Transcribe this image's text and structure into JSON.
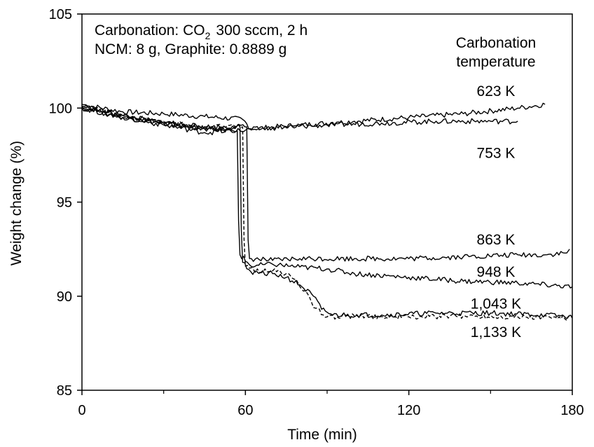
{
  "chart_data": {
    "type": "line",
    "xlabel": "Time (min)",
    "ylabel": "Weight change (%)",
    "xlim": [
      0,
      180
    ],
    "ylim": [
      85,
      105
    ],
    "xticks": [
      0,
      60,
      120,
      180
    ],
    "yticks": [
      85,
      90,
      95,
      100,
      105
    ],
    "annotations": {
      "line1_prefix": "Carbonation: CO",
      "line1_subscript": "2",
      "line1_suffix": "300 sccm, 2 h",
      "line2": "NCM: 8 g,  Graphite: 0.8889 g",
      "legend_title_1": "Carbonation",
      "legend_title_2": "temperature"
    },
    "series": [
      {
        "name": "623 K",
        "dash": "solid",
        "points": [
          [
            0,
            100.2
          ],
          [
            15,
            99.8
          ],
          [
            30,
            99.7
          ],
          [
            45,
            99.55
          ],
          [
            59,
            99.4
          ],
          [
            62,
            98.9
          ],
          [
            80,
            99.1
          ],
          [
            100,
            99.3
          ],
          [
            120,
            99.5
          ],
          [
            140,
            99.7
          ],
          [
            160,
            100.0
          ],
          [
            170,
            100.2
          ]
        ]
      },
      {
        "name": "753 K",
        "dash": "solid",
        "points": [
          [
            0,
            100.0
          ],
          [
            15,
            99.5
          ],
          [
            30,
            99.2
          ],
          [
            45,
            98.9
          ],
          [
            58,
            98.8
          ],
          [
            70,
            98.95
          ],
          [
            90,
            99.1
          ],
          [
            110,
            99.2
          ],
          [
            130,
            99.3
          ],
          [
            150,
            99.3
          ],
          [
            160,
            99.3
          ]
        ]
      },
      {
        "name": "863 K",
        "dash": "solid",
        "points": [
          [
            0,
            100.1
          ],
          [
            15,
            99.6
          ],
          [
            30,
            99.2
          ],
          [
            45,
            99.0
          ],
          [
            60.5,
            99.0
          ],
          [
            61,
            93.0
          ],
          [
            61.5,
            92.0
          ],
          [
            70,
            91.9
          ],
          [
            80,
            92.0
          ],
          [
            100,
            92.0
          ],
          [
            120,
            92.0
          ],
          [
            140,
            92.1
          ],
          [
            160,
            92.2
          ],
          [
            170,
            92.2
          ],
          [
            178,
            92.3
          ],
          [
            179,
            92.5
          ]
        ]
      },
      {
        "name": "948 K",
        "dash": "solid",
        "points": [
          [
            0,
            100.0
          ],
          [
            15,
            99.5
          ],
          [
            30,
            99.1
          ],
          [
            45,
            98.7
          ],
          [
            57,
            98.8
          ],
          [
            57.5,
            94.0
          ],
          [
            58,
            92.2
          ],
          [
            62,
            91.6
          ],
          [
            70,
            91.7
          ],
          [
            80,
            91.55
          ],
          [
            90,
            91.45
          ],
          [
            100,
            91.2
          ],
          [
            120,
            91.0
          ],
          [
            140,
            90.8
          ],
          [
            160,
            90.7
          ],
          [
            180,
            90.5
          ]
        ]
      },
      {
        "name": "1,043 K",
        "dash": "solid",
        "points": [
          [
            0,
            100.0
          ],
          [
            15,
            99.6
          ],
          [
            30,
            99.2
          ],
          [
            45,
            98.9
          ],
          [
            58,
            99.0
          ],
          [
            58.5,
            93.5
          ],
          [
            59,
            91.8
          ],
          [
            62,
            91.3
          ],
          [
            70,
            91.2
          ],
          [
            75,
            91.0
          ],
          [
            80,
            90.6
          ],
          [
            85,
            90.0
          ],
          [
            88,
            89.3
          ],
          [
            92,
            89.0
          ],
          [
            110,
            89.0
          ],
          [
            130,
            89.1
          ],
          [
            150,
            89.1
          ],
          [
            170,
            89.0
          ],
          [
            180,
            88.9
          ]
        ]
      },
      {
        "name": "1,133 K",
        "dash": "dashed",
        "points": [
          [
            0,
            100.1
          ],
          [
            15,
            99.6
          ],
          [
            30,
            99.3
          ],
          [
            45,
            99.0
          ],
          [
            59,
            99.0
          ],
          [
            59.5,
            93.0
          ],
          [
            60,
            91.6
          ],
          [
            63,
            91.4
          ],
          [
            70,
            91.35
          ],
          [
            75,
            91.2
          ],
          [
            78,
            90.9
          ],
          [
            82,
            90.3
          ],
          [
            85,
            89.4
          ],
          [
            90,
            88.9
          ],
          [
            100,
            88.95
          ],
          [
            120,
            88.9
          ],
          [
            140,
            88.95
          ],
          [
            160,
            88.9
          ],
          [
            180,
            88.85
          ]
        ]
      }
    ]
  }
}
